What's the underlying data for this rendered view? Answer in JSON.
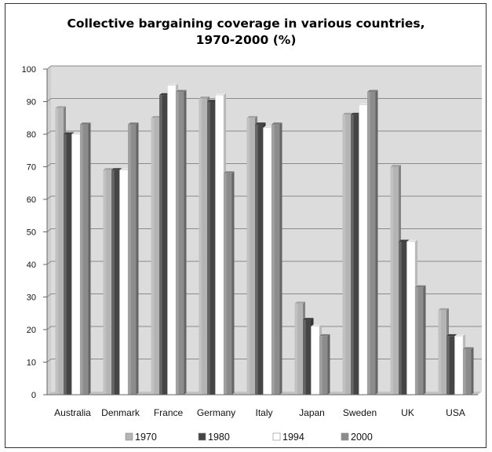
{
  "chart_data": {
    "type": "bar",
    "title_lines": [
      "Collective bargaining coverage in various countries,",
      "1970-2000 (%)"
    ],
    "categories": [
      "Australia",
      "Denmark",
      "France",
      "Germany",
      "Italy",
      "Japan",
      "Sweden",
      "UK",
      "USA"
    ],
    "series": [
      {
        "name": "1970",
        "values": [
          88,
          69,
          85,
          91,
          85,
          28,
          86,
          70,
          26
        ]
      },
      {
        "name": "1980",
        "values": [
          80,
          69,
          92,
          90,
          83,
          23,
          86,
          47,
          18
        ]
      },
      {
        "name": "1994",
        "values": [
          80,
          69,
          95,
          92,
          82,
          21,
          89,
          47,
          18
        ]
      },
      {
        "name": "2000",
        "values": [
          83,
          83,
          93,
          68,
          83,
          18,
          93,
          33,
          14
        ]
      }
    ],
    "ylim": [
      0,
      100
    ],
    "yticks": [
      "0",
      "10",
      "20",
      "30",
      "40",
      "50",
      "60",
      "70",
      "80",
      "90",
      "100"
    ],
    "grid": true,
    "legend": "bottom",
    "colors": {
      "1970": "#b4b4b4",
      "1980": "#454545",
      "1994": "#ffffff",
      "2000": "#8c8c8c",
      "plot_bg": "#dcdcdc",
      "gridline": "#8a8a8a"
    }
  }
}
